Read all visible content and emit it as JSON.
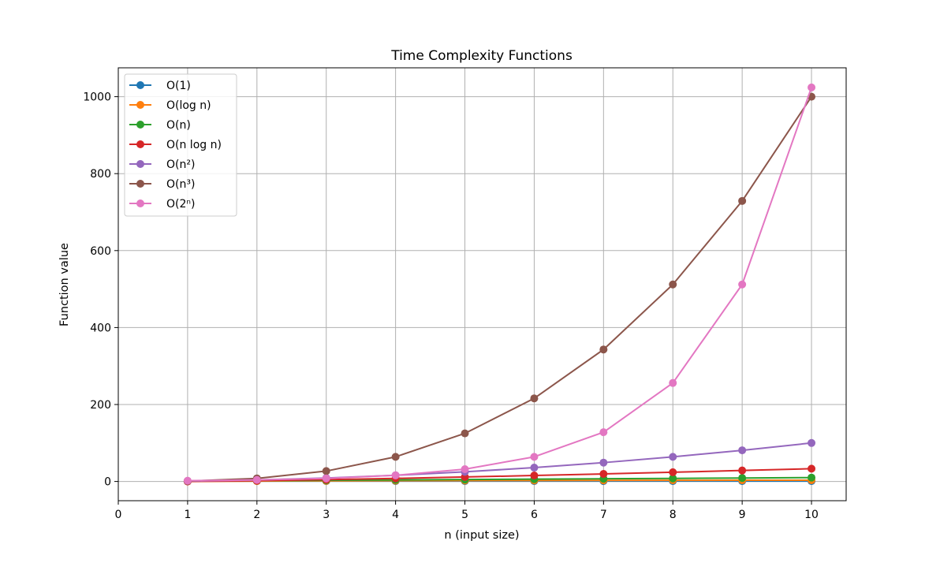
{
  "chart_data": {
    "type": "line",
    "title": "Time Complexity Functions",
    "xlabel": "n (input size)",
    "ylabel": "Function value",
    "xlim": [
      0,
      10.5
    ],
    "ylim": [
      -50,
      1075
    ],
    "xticks": [
      0,
      1,
      2,
      3,
      4,
      5,
      6,
      7,
      8,
      9,
      10
    ],
    "yticks": [
      0,
      200,
      400,
      600,
      800,
      1000
    ],
    "grid": true,
    "legend_position": "upper-left",
    "x": [
      1,
      2,
      3,
      4,
      5,
      6,
      7,
      8,
      9,
      10
    ],
    "series": [
      {
        "name": "O(1)",
        "color": "#1f77b4",
        "values": [
          1,
          1,
          1,
          1,
          1,
          1,
          1,
          1,
          1,
          1
        ]
      },
      {
        "name": "O(log n)",
        "color": "#ff7f0e",
        "values": [
          0,
          1,
          1.58,
          2,
          2.32,
          2.58,
          2.81,
          3,
          3.17,
          3.32
        ]
      },
      {
        "name": "O(n)",
        "color": "#2ca02c",
        "values": [
          1,
          2,
          3,
          4,
          5,
          6,
          7,
          8,
          9,
          10
        ]
      },
      {
        "name": "O(n log n)",
        "color": "#d62728",
        "values": [
          0,
          2,
          4.75,
          8,
          11.61,
          15.51,
          19.65,
          24,
          28.53,
          33.22
        ]
      },
      {
        "name": "O(n²)",
        "color": "#9467bd",
        "values": [
          1,
          4,
          9,
          16,
          25,
          36,
          49,
          64,
          81,
          100
        ]
      },
      {
        "name": "O(n³)",
        "color": "#8c564b",
        "values": [
          1,
          8,
          27,
          64,
          125,
          216,
          343,
          512,
          729,
          1000
        ]
      },
      {
        "name": "O(2ⁿ)",
        "color": "#e377c2",
        "values": [
          2,
          4,
          8,
          16,
          32,
          64,
          128,
          256,
          512,
          1024
        ]
      }
    ]
  }
}
